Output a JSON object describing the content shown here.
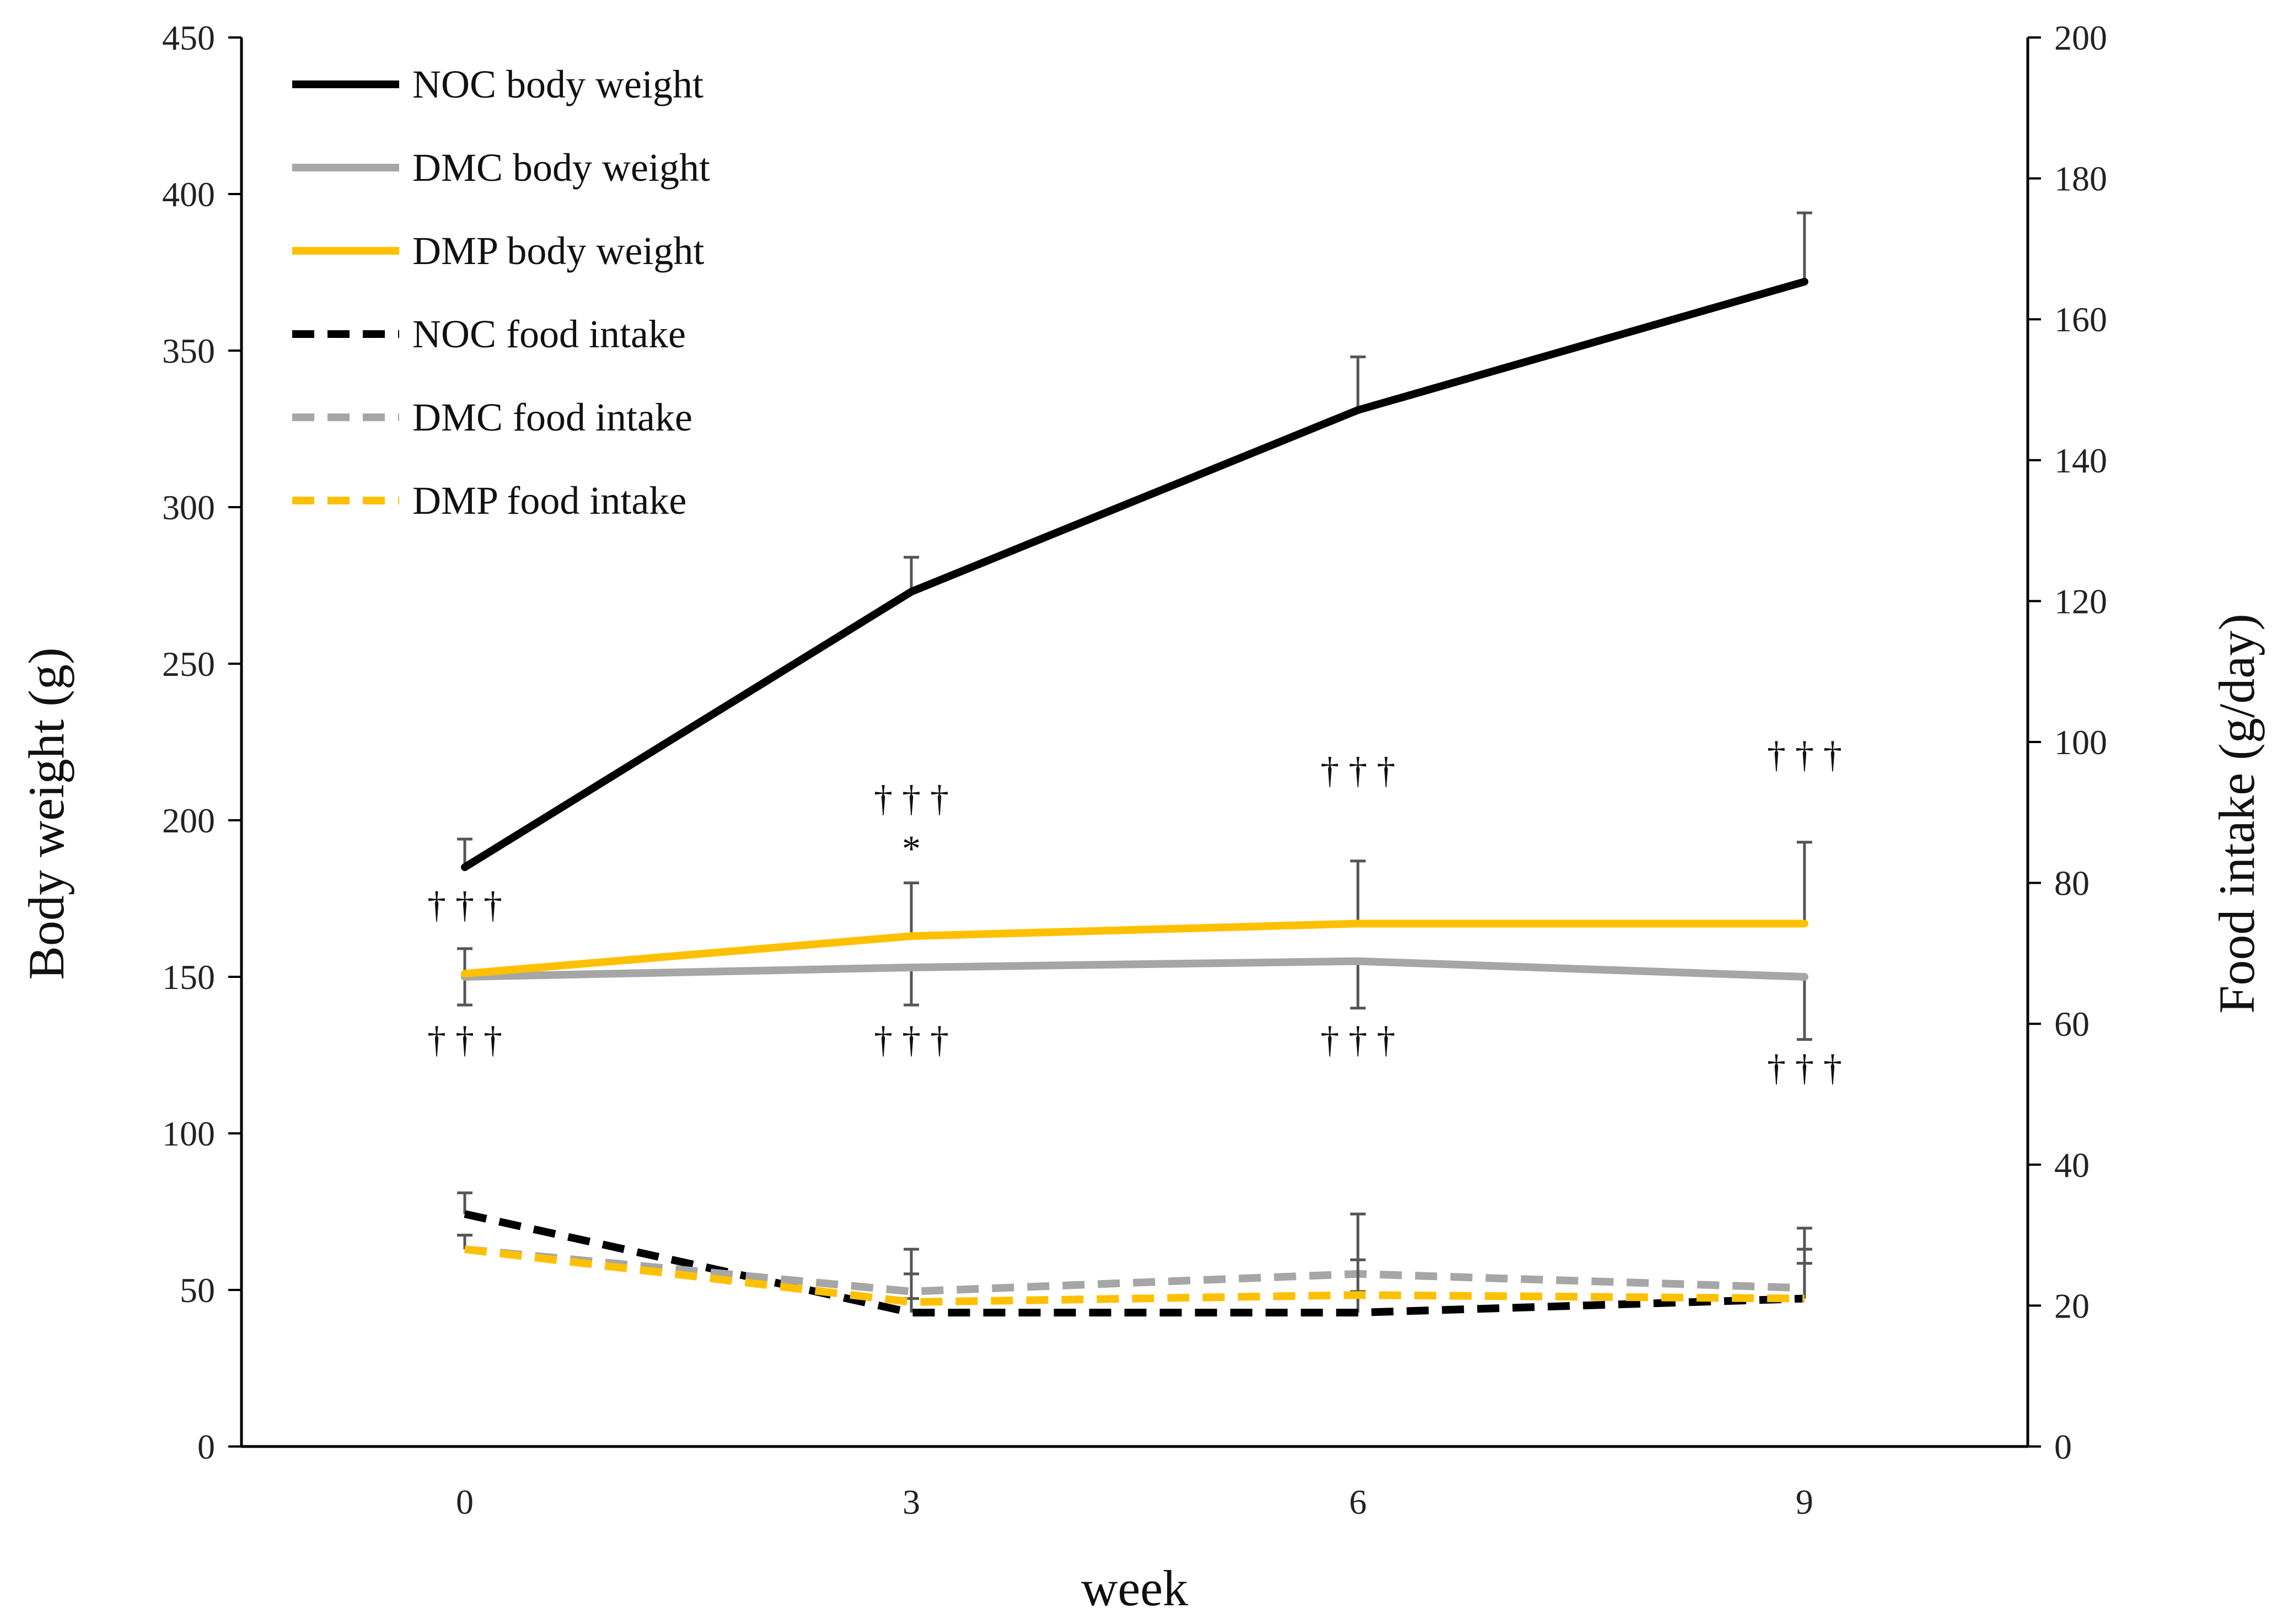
{
  "chart_data": {
    "type": "line",
    "xlabel": "week",
    "ylabel": "Body weight (g)",
    "y2label": "Food intake (g/day)",
    "x_ticks": [
      "0",
      "3",
      "6",
      "9"
    ],
    "x": [
      0,
      3,
      6,
      9
    ],
    "xlim": [
      -1.5,
      10.5
    ],
    "ylim": [
      0,
      450
    ],
    "y2lim": [
      0,
      200
    ],
    "y_ticks": [
      "0",
      "50",
      "100",
      "150",
      "200",
      "250",
      "300",
      "350",
      "400",
      "450"
    ],
    "y2_ticks": [
      "0",
      "20",
      "40",
      "60",
      "80",
      "100",
      "120",
      "140",
      "160",
      "180",
      "200"
    ],
    "legend_position": "top-left",
    "series": [
      {
        "name": "NOC body weight",
        "axis": "left",
        "style": "solid",
        "color": "#000000",
        "values": [
          185,
          273,
          331,
          372
        ],
        "error": [
          9,
          11,
          17,
          22
        ]
      },
      {
        "name": "DMC body weight",
        "axis": "left",
        "style": "solid",
        "color": "#a6a6a6",
        "values": [
          150,
          153,
          155,
          150
        ],
        "error": [
          9,
          12,
          15,
          20
        ]
      },
      {
        "name": "DMP body weight",
        "axis": "left",
        "style": "solid",
        "color": "#ffc000",
        "values": [
          151,
          163,
          167,
          167
        ],
        "error": [
          8,
          17,
          20,
          26
        ]
      },
      {
        "name": "NOC food intake",
        "axis": "right",
        "style": "dashed",
        "color": "#000000",
        "values": [
          33,
          19,
          19,
          21
        ],
        "error": [
          3,
          2,
          3,
          5
        ]
      },
      {
        "name": "DMC food intake",
        "axis": "right",
        "style": "dashed",
        "color": "#a6a6a6",
        "values": [
          28,
          22,
          24.5,
          22.5
        ],
        "error": [
          2,
          6,
          8.5,
          8.5
        ]
      },
      {
        "name": "DMP food intake",
        "axis": "right",
        "style": "dashed",
        "color": "#ffc000",
        "values": [
          28,
          20.5,
          21.5,
          21
        ],
        "error": [
          2,
          4,
          5,
          7
        ]
      }
    ],
    "annotations": [
      {
        "text": "† † †",
        "x": 0,
        "y": 169
      },
      {
        "text": "† † †",
        "x": 0,
        "y": 126
      },
      {
        "text": "† † †",
        "x": 3,
        "y": 203
      },
      {
        "text": "*",
        "x": 3,
        "y": 187
      },
      {
        "text": "† † †",
        "x": 3,
        "y": 126
      },
      {
        "text": "† † †",
        "x": 6,
        "y": 212
      },
      {
        "text": "† † †",
        "x": 6,
        "y": 126
      },
      {
        "text": "† † †",
        "x": 9,
        "y": 217
      },
      {
        "text": "† † †",
        "x": 9,
        "y": 117
      }
    ]
  }
}
